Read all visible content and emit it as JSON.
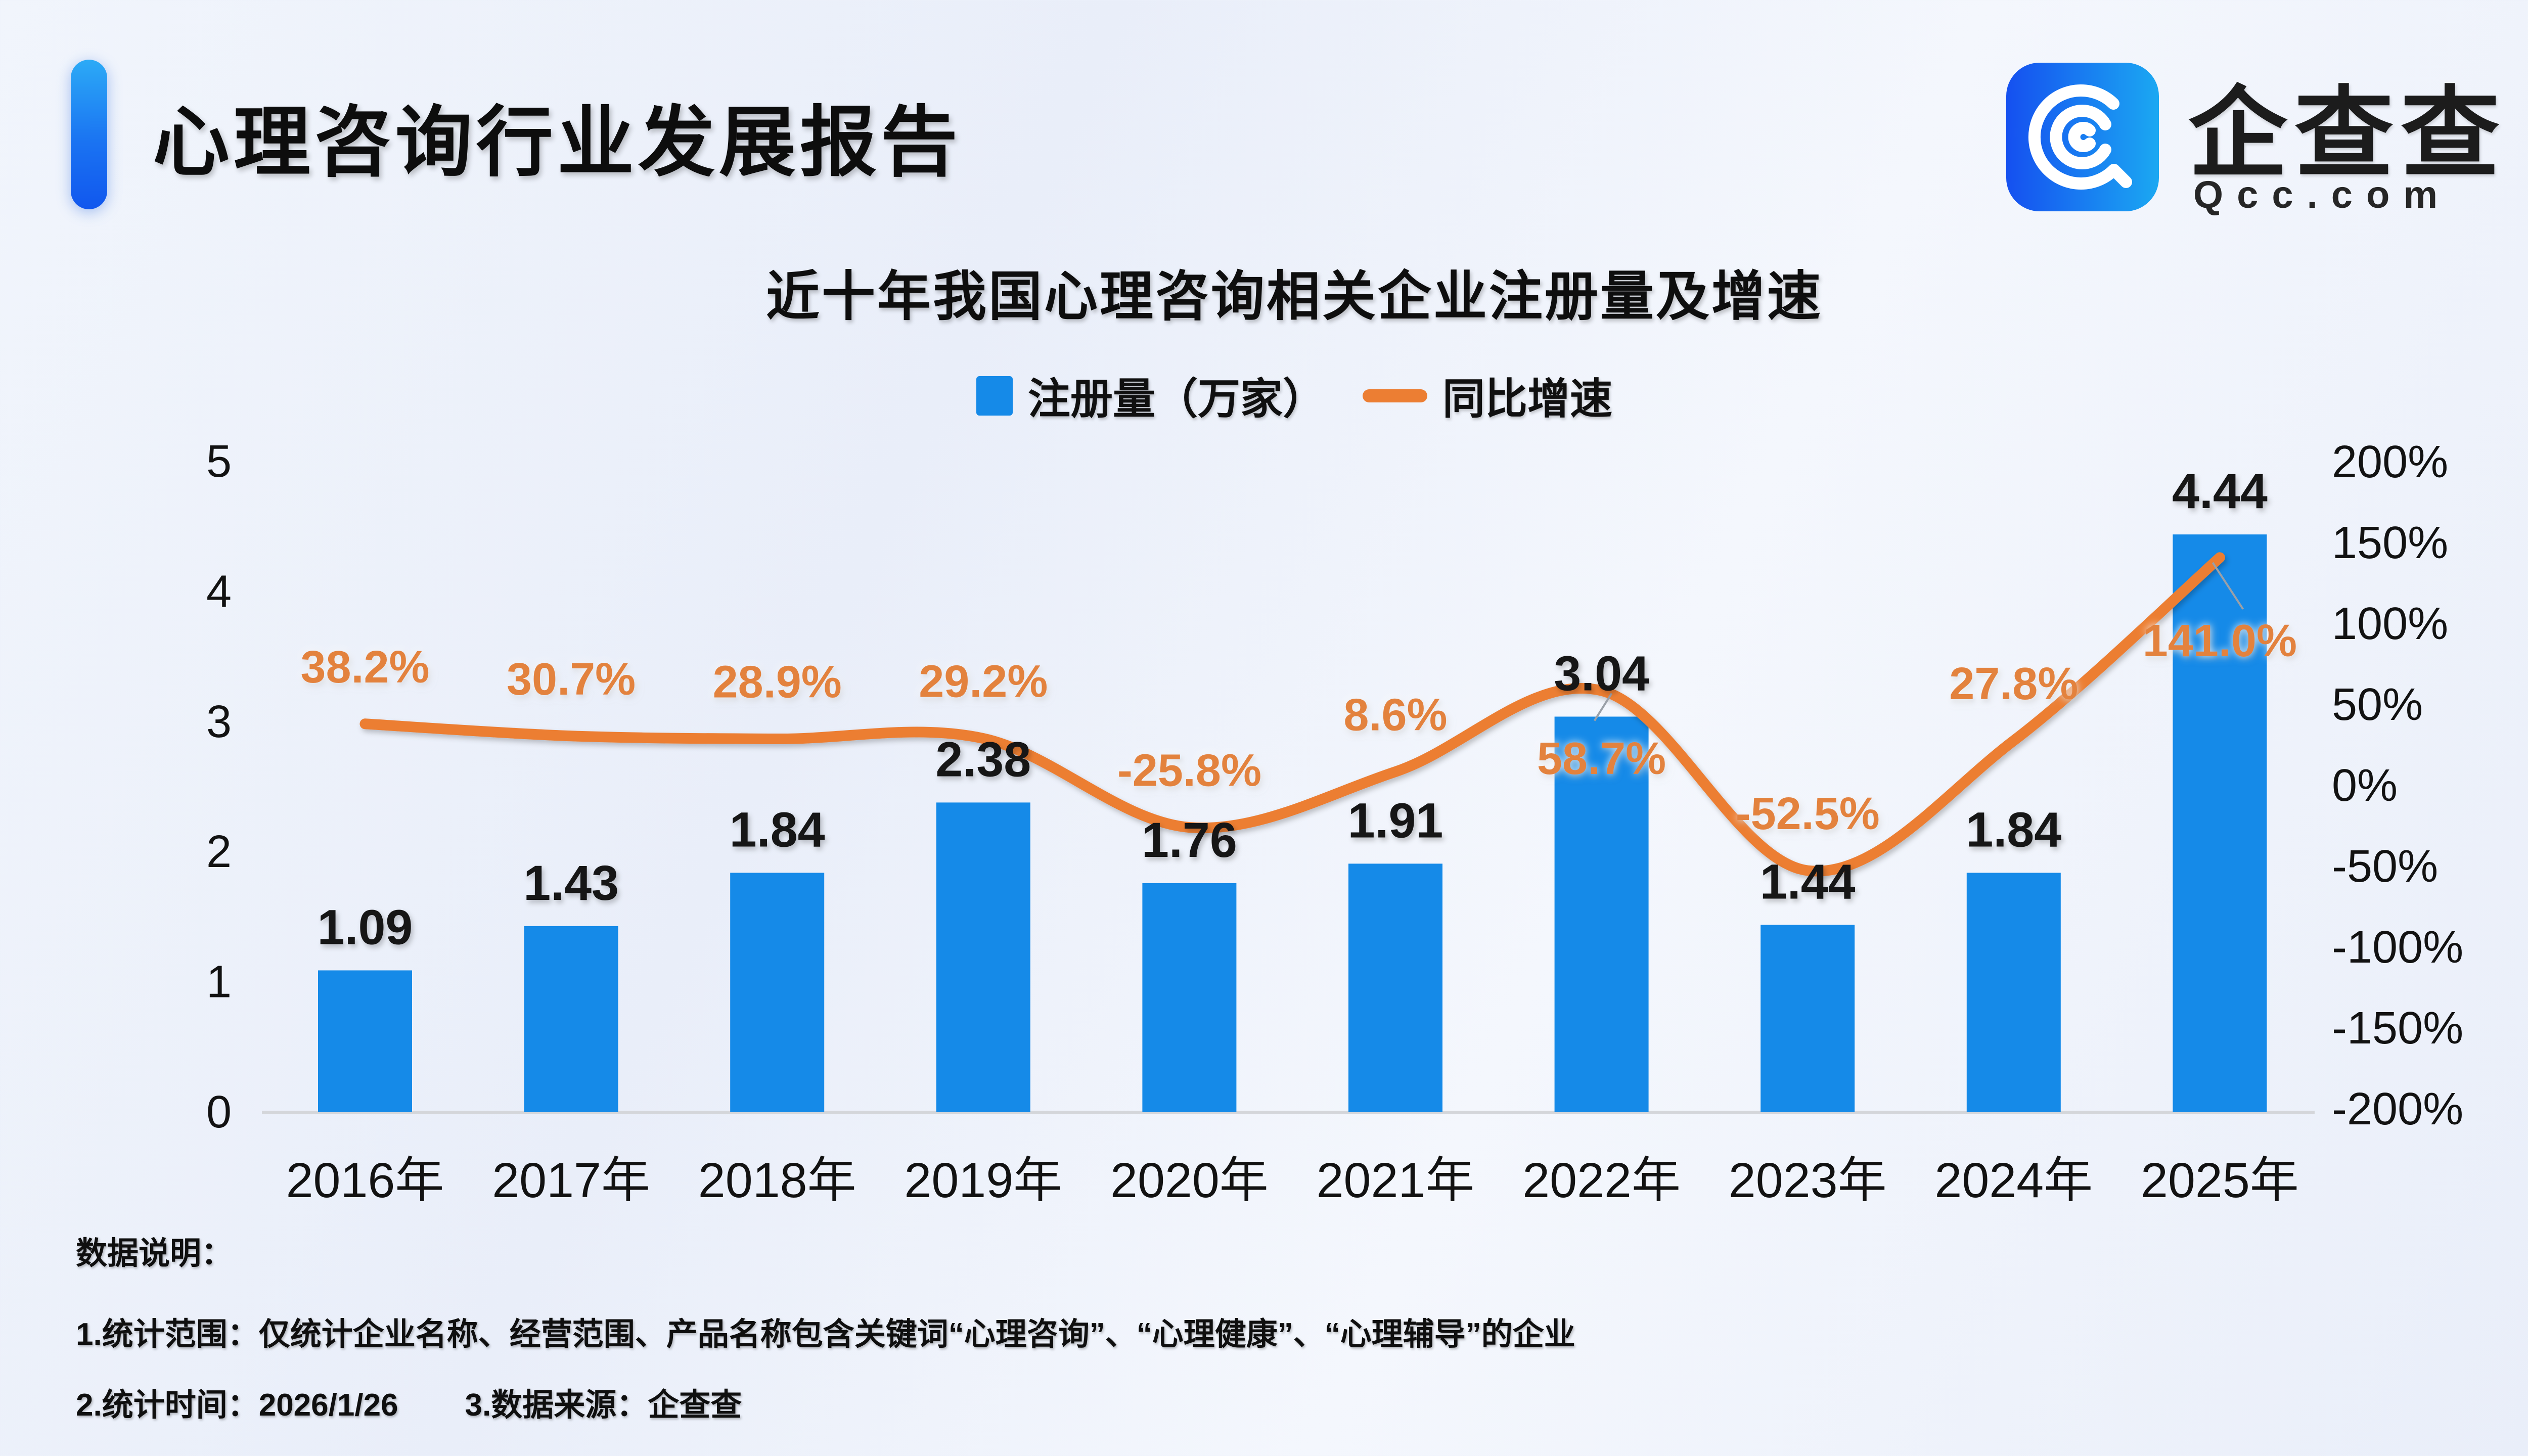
{
  "header": {
    "title": "心理咨询行业发展报告"
  },
  "logo": {
    "icon": "qcc-logo-icon",
    "brand_cn": "企查查",
    "brand_domain": "Qcc.com",
    "icon_gradient": [
      "#1550f0",
      "#1ba8f2"
    ]
  },
  "chart_data": {
    "type": "bar+line",
    "title": "近十年我国心理咨询相关企业注册量及增速",
    "categories": [
      "2016年",
      "2017年",
      "2018年",
      "2019年",
      "2020年",
      "2021年",
      "2022年",
      "2023年",
      "2024年",
      "2025年"
    ],
    "series": [
      {
        "name": "注册量（万家）",
        "type": "bar",
        "axis": "left",
        "color": "#158ae8",
        "values": [
          1.09,
          1.43,
          1.84,
          2.38,
          1.76,
          1.91,
          3.04,
          1.44,
          1.84,
          4.44
        ],
        "labels": [
          "1.09",
          "1.43",
          "1.84",
          "2.38",
          "1.76",
          "1.91",
          "3.04",
          "1.44",
          "1.84",
          "4.44"
        ]
      },
      {
        "name": "同比增速",
        "type": "line",
        "axis": "right",
        "color": "#ec7e33",
        "values": [
          38.2,
          30.7,
          28.9,
          29.2,
          -25.8,
          8.6,
          58.7,
          -52.5,
          27.8,
          141.0
        ],
        "labels": [
          "38.2%",
          "30.7%",
          "28.9%",
          "29.2%",
          "-25.8%",
          "8.6%",
          "58.7%",
          "-52.5%",
          "27.8%",
          "141.0%"
        ]
      }
    ],
    "left_axis": {
      "ticks": [
        "5",
        "4",
        "3",
        "2",
        "1",
        "0"
      ],
      "min": 0,
      "max": 5
    },
    "right_axis": {
      "ticks": [
        "200%",
        "150%",
        "100%",
        "50%",
        "0%",
        "-50%",
        "-100%",
        "-150%",
        "-200%"
      ],
      "min": -200,
      "max": 200
    },
    "legend_position": "top-center",
    "grid": false,
    "label_color_bar": "#141414",
    "label_color_line": "#e3823e",
    "axis_text_color": "#121212",
    "baseline_color": "#d4d6da",
    "leader_color": "#9aa0a8"
  },
  "footer": {
    "heading": "数据说明：",
    "line1": "1.统计范围：仅统计企业名称、经营范围、产品名称包含关键词“心理咨询”、“心理健康”、“心理辅导”的企业",
    "line2_part1": "2.统计时间：2026/1/26",
    "line2_part2": "3.数据来源：企查查"
  }
}
